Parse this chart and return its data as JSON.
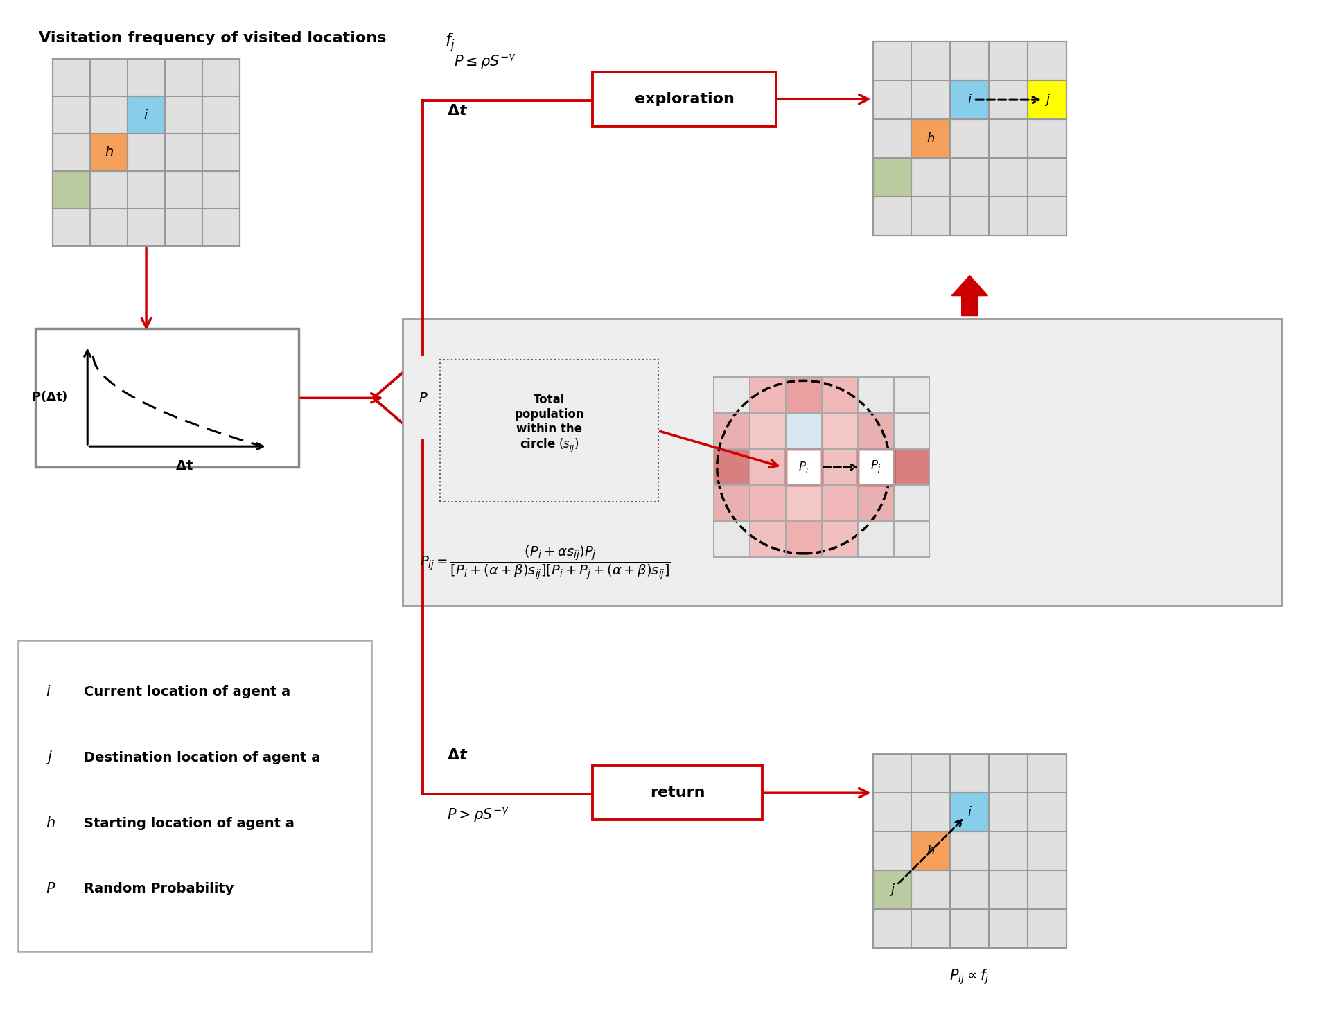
{
  "bg_color": "#ffffff",
  "red_color": "#cc0000",
  "grid_line_color": "#aaaaaa",
  "grid_bg_color": "#e0e0e0",
  "cell_cyan": "#87CEEB",
  "cell_orange": "#F5A05A",
  "cell_green": "#BACBA0",
  "cell_yellow": "#FFFF00",
  "mid_box_bg": "#eeeeee",
  "title": "Visitation frequency of visited locations ",
  "title_fj": "$\\boldsymbol{f_j}$",
  "formula_text": "$P_{ij} = \\dfrac{(P_i+\\alpha s_{ij})P_j}{[P_i + (\\alpha + \\beta)s_{ij}][P_i + P_j + (\\alpha + \\beta)s_{ij}]}$",
  "proportional_text": "$P_{ij} \\propto f_j$",
  "exploration_label": "exploration",
  "return_label": "return",
  "upper_cond1": "$P \\leq \\rho S^{-\\gamma}$",
  "upper_cond2": "$\\boldsymbol{\\Delta t}$",
  "lower_cond1": "$\\boldsymbol{\\Delta t}$",
  "lower_cond2": "$P > \\rho S^{-\\gamma}$",
  "legend_items": [
    [
      "$i$",
      "  Current location of agent a"
    ],
    [
      "$j$",
      "  Destination location of agent a"
    ],
    [
      "$h$",
      "  Starting location of agent a"
    ],
    [
      "$P$",
      "  Random Probability"
    ]
  ],
  "pink_cells": {
    "0_0": "#e8e8e8",
    "0_1": "#f0b8b8",
    "0_2": "#e8a0a0",
    "0_3": "#f0b8b8",
    "0_4": "#e8e8e8",
    "0_5": "#e8e8e8",
    "1_0": "#e8b0b0",
    "1_1": "#f5c8c8",
    "1_2": "#d8e8f0",
    "1_3": "#f5c8c8",
    "1_4": "#e8b0b0",
    "1_5": "#e8e8e8",
    "2_0": "#d88080",
    "2_1": "#f0c0c0",
    "2_2": "#f5d8d8",
    "2_3": "#f0c0c0",
    "2_4": "#d88080",
    "2_5": "#d88080",
    "3_0": "#e8b0b0",
    "3_1": "#f0b8b8",
    "3_2": "#f5c8c8",
    "3_3": "#f0b8b8",
    "3_4": "#e8b0b0",
    "3_5": "#e8e8e8",
    "4_0": "#e8e8e8",
    "4_1": "#f0c0c0",
    "4_2": "#f0b0b0",
    "4_3": "#f0c0c0",
    "4_4": "#e8e8e8",
    "4_5": "#e8e8e8"
  }
}
